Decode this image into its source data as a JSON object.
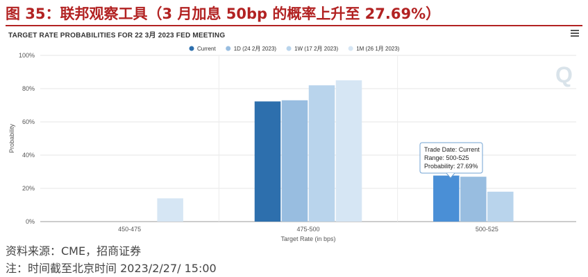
{
  "figure_title": "图 35：联邦观察工具（3 月加息 50bp 的概率上升至 27.69%）",
  "chart_data": {
    "type": "bar",
    "title": "TARGET RATE PROBABILITIES FOR 22 3月 2023 FED MEETING",
    "xlabel": "Target Rate (in bps)",
    "ylabel": "Probability",
    "categories": [
      "450-475",
      "475-500",
      "500-525"
    ],
    "ylim": [
      0,
      100
    ],
    "yticks": [
      0,
      20,
      40,
      60,
      80,
      100
    ],
    "ytick_suffix": "%",
    "grid": true,
    "legend_position": "top",
    "series": [
      {
        "name": "Current",
        "color": "#2d6fad",
        "values": [
          0,
          72.31,
          27.69
        ]
      },
      {
        "name": "1D (24 2月 2023)",
        "color": "#98bde0",
        "values": [
          0,
          73,
          27
        ]
      },
      {
        "name": "1W (17 2月 2023)",
        "color": "#b9d4ec",
        "values": [
          0,
          82,
          18
        ]
      },
      {
        "name": "1M (26 1月 2023)",
        "color": "#d6e6f4",
        "values": [
          14,
          85,
          0
        ]
      }
    ],
    "highlight_color": "#4a8fd6",
    "tooltip": {
      "lines": [
        "Trade Date: Current",
        "Range: 500-525",
        "Probability: 27.69%"
      ]
    }
  },
  "watermark": "Q",
  "source_note": "资料来源：CME，招商证券",
  "time_note": "注：时间截至北京时间 2023/2/27/ 15:00"
}
